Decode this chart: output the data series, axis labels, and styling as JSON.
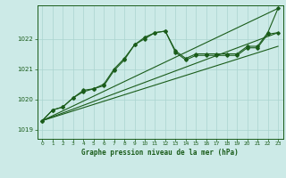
{
  "title": "Graphe pression niveau de la mer (hPa)",
  "bg_color": "#cceae7",
  "grid_color": "#aad4d0",
  "line_color": "#1a5c1a",
  "xlim": [
    -0.5,
    23.5
  ],
  "ylim": [
    1018.7,
    1023.1
  ],
  "yticks": [
    1019,
    1020,
    1021,
    1022
  ],
  "xticks": [
    0,
    1,
    2,
    3,
    4,
    5,
    6,
    7,
    8,
    9,
    10,
    11,
    12,
    13,
    14,
    15,
    16,
    17,
    18,
    19,
    20,
    21,
    22,
    23
  ],
  "series1_x": [
    0,
    1,
    2,
    3,
    4,
    5,
    6,
    7,
    8,
    9,
    10,
    11,
    12,
    13,
    14,
    15,
    16,
    17,
    18,
    19,
    20,
    21,
    22,
    23
  ],
  "series1_y": [
    1019.3,
    1019.65,
    1019.75,
    1020.05,
    1020.3,
    1020.35,
    1020.5,
    1021.0,
    1021.35,
    1021.8,
    1022.05,
    1022.2,
    1022.25,
    1021.6,
    1021.35,
    1021.5,
    1021.5,
    1021.5,
    1021.5,
    1021.5,
    1021.75,
    1021.75,
    1022.2,
    1023.0
  ],
  "series2_x": [
    0,
    1,
    2,
    3,
    4,
    5,
    6,
    7,
    8,
    9,
    10,
    11,
    12,
    13,
    14,
    15,
    16,
    17,
    18,
    19,
    20,
    21,
    22,
    23
  ],
  "series2_y": [
    1019.3,
    1019.65,
    1019.75,
    1020.05,
    1020.25,
    1020.35,
    1020.45,
    1020.95,
    1021.3,
    1021.8,
    1022.0,
    1022.2,
    1022.25,
    1021.55,
    1021.3,
    1021.45,
    1021.45,
    1021.45,
    1021.45,
    1021.45,
    1021.7,
    1021.7,
    1022.15,
    1022.2
  ],
  "series3_x": [
    0,
    23
  ],
  "series3_y": [
    1019.3,
    1023.0
  ],
  "series4_x": [
    0,
    23
  ],
  "series4_y": [
    1019.3,
    1022.2
  ],
  "series5_x": [
    0,
    23
  ],
  "series5_y": [
    1019.3,
    1021.75
  ]
}
